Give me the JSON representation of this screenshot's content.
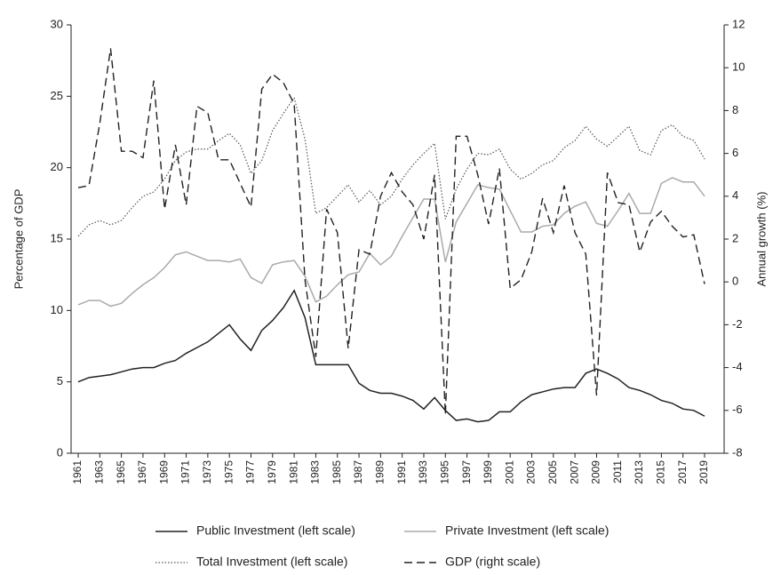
{
  "chart_data": {
    "type": "line",
    "y_label": "Percentage of GDP",
    "y2_label": "Annual growth (%)",
    "x": [
      1961,
      1962,
      1963,
      1964,
      1965,
      1966,
      1967,
      1968,
      1969,
      1970,
      1971,
      1972,
      1973,
      1974,
      1975,
      1976,
      1977,
      1978,
      1979,
      1980,
      1981,
      1982,
      1983,
      1984,
      1985,
      1986,
      1987,
      1988,
      1989,
      1990,
      1991,
      1992,
      1993,
      1994,
      1995,
      1996,
      1997,
      1998,
      1999,
      2000,
      2001,
      2002,
      2003,
      2004,
      2005,
      2006,
      2007,
      2008,
      2009,
      2010,
      2011,
      2012,
      2013,
      2014,
      2015,
      2016,
      2017,
      2018,
      2019
    ],
    "xlim": [
      1961,
      2019
    ],
    "xticks": [
      1961,
      1963,
      1965,
      1967,
      1969,
      1971,
      1973,
      1975,
      1977,
      1979,
      1981,
      1983,
      1985,
      1987,
      1989,
      1991,
      1993,
      1995,
      1997,
      1999,
      2001,
      2003,
      2005,
      2007,
      2009,
      2011,
      2013,
      2015,
      2017,
      2019
    ],
    "ylim": [
      0,
      30
    ],
    "yticks": [
      0,
      5,
      10,
      15,
      20,
      25,
      30
    ],
    "y2lim": [
      -8,
      12
    ],
    "y2ticks": [
      -8,
      -6,
      -4,
      -2,
      0,
      2,
      4,
      6,
      8,
      10,
      12
    ],
    "series": [
      {
        "name": "Public Investment (left scale)",
        "color": "#222222",
        "line_style": "solid",
        "values": [
          5.0,
          5.3,
          5.4,
          5.5,
          5.7,
          5.9,
          6.0,
          6.0,
          6.3,
          6.5,
          7.0,
          7.4,
          7.8,
          8.4,
          9.0,
          8.0,
          7.2,
          8.6,
          9.3,
          10.2,
          11.4,
          9.5,
          6.2,
          6.2,
          6.2,
          6.2,
          4.9,
          4.4,
          4.2,
          4.2,
          4.0,
          3.7,
          3.1,
          3.9,
          3.0,
          2.3,
          2.4,
          2.2,
          2.3,
          2.9,
          2.9,
          3.6,
          4.1,
          4.3,
          4.5,
          4.6,
          4.6,
          5.6,
          5.9,
          5.6,
          5.2,
          4.6,
          4.4,
          4.1,
          3.7,
          3.5,
          3.1,
          3.0,
          2.6
        ]
      },
      {
        "name": "Private Investment (left scale)",
        "color": "#aaaaaa",
        "line_style": "solid",
        "values": [
          10.4,
          10.7,
          10.7,
          10.3,
          10.5,
          11.2,
          11.8,
          12.3,
          13.0,
          13.9,
          14.1,
          13.8,
          13.5,
          13.5,
          13.4,
          13.6,
          12.3,
          11.9,
          13.2,
          13.4,
          13.5,
          12.4,
          10.6,
          11.0,
          11.8,
          12.5,
          12.7,
          14.0,
          13.2,
          13.8,
          15.2,
          16.5,
          17.8,
          17.8,
          13.4,
          16.2,
          17.5,
          18.8,
          18.6,
          18.5,
          17.0,
          15.5,
          15.5,
          15.9,
          16.0,
          16.8,
          17.3,
          17.6,
          16.1,
          15.9,
          17.0,
          18.2,
          16.8,
          16.8,
          18.9,
          19.3,
          19.0,
          19.0,
          18.0
        ]
      },
      {
        "name": "Total Investment (left scale)",
        "color": "#555555",
        "line_style": "dotted",
        "values": [
          15.2,
          16.0,
          16.3,
          16.0,
          16.3,
          17.2,
          18.0,
          18.3,
          19.2,
          20.5,
          21.1,
          21.3,
          21.3,
          21.9,
          22.4,
          21.6,
          19.6,
          20.5,
          22.6,
          23.8,
          24.9,
          22.0,
          16.8,
          17.2,
          18.0,
          18.8,
          17.6,
          18.4,
          17.4,
          18.0,
          19.2,
          20.2,
          21.0,
          21.7,
          16.4,
          18.5,
          19.9,
          21.0,
          20.9,
          21.3,
          19.9,
          19.2,
          19.6,
          20.2,
          20.5,
          21.4,
          21.9,
          22.9,
          22.0,
          21.5,
          22.2,
          22.9,
          21.2,
          20.9,
          22.6,
          23.0,
          22.2,
          21.9,
          20.6
        ]
      },
      {
        "name": "GDP (right scale)",
        "color": "#222222",
        "line_style": "dashed",
        "axis": "y2",
        "values": [
          4.4,
          4.5,
          7.4,
          10.9,
          6.1,
          6.1,
          5.8,
          9.4,
          3.4,
          6.4,
          3.6,
          8.2,
          7.9,
          5.7,
          5.7,
          4.6,
          3.5,
          9.0,
          9.7,
          9.3,
          8.3,
          0.1,
          -3.5,
          3.4,
          2.3,
          -3.1,
          1.5,
          1.3,
          4.0,
          5.1,
          4.2,
          3.6,
          2.0,
          5.0,
          -6.2,
          6.8,
          6.8,
          5.0,
          2.7,
          5.3,
          -0.3,
          0.1,
          1.4,
          3.9,
          2.3,
          4.5,
          2.3,
          1.3,
          -5.3,
          5.1,
          3.7,
          3.6,
          1.4,
          2.8,
          3.3,
          2.6,
          2.1,
          2.2,
          -0.1
        ]
      }
    ]
  }
}
